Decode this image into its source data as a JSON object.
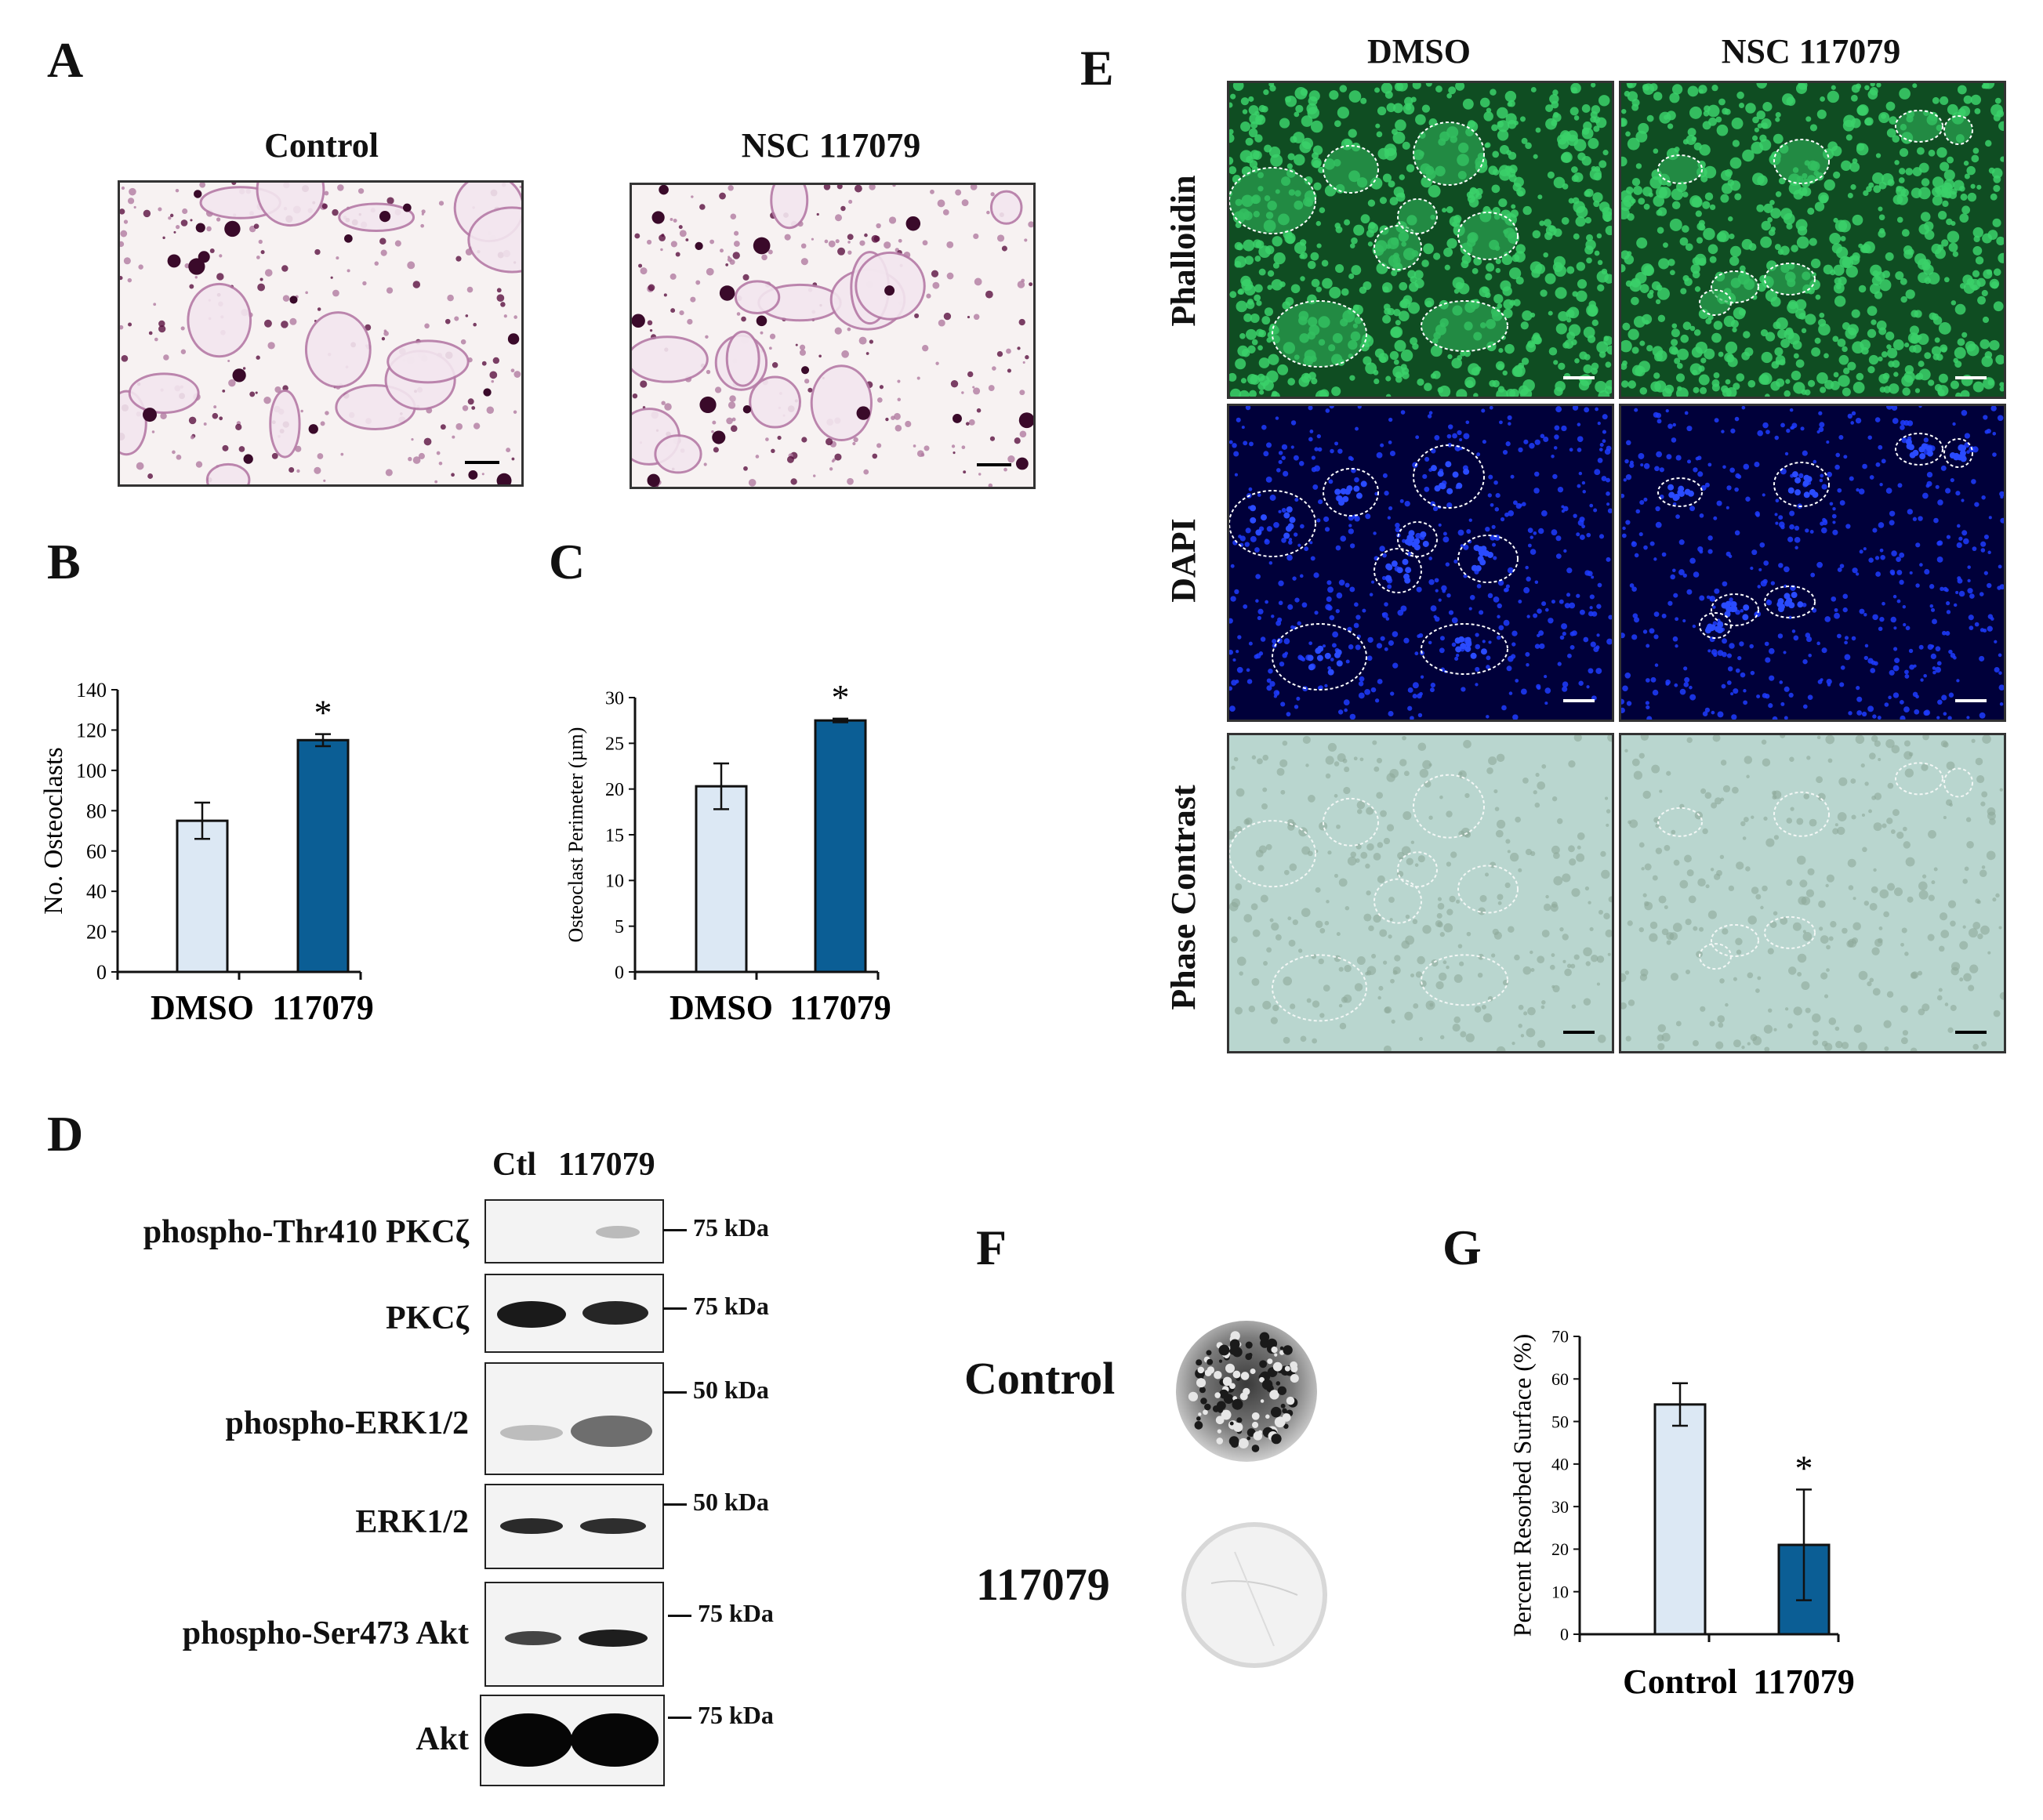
{
  "panels": {
    "A": {
      "label": "A",
      "left_title": "Control",
      "right_title": "NSC 117079"
    },
    "B": {
      "label": "B"
    },
    "C": {
      "label": "C"
    },
    "D": {
      "label": "D",
      "col_ctl": "Ctl",
      "col_drug": "117079",
      "rows": [
        {
          "name": "phospho-Thr410 PKCζ",
          "marker": "75 kDa"
        },
        {
          "name": "PKCζ",
          "marker": "75 kDa"
        },
        {
          "name": "phospho-ERK1/2",
          "marker": "50 kDa"
        },
        {
          "name": "ERK1/2",
          "marker": "50 kDa"
        },
        {
          "name": "phospho-Ser473 Akt",
          "marker": "75 kDa"
        },
        {
          "name": "Akt",
          "marker": "75 kDa"
        }
      ]
    },
    "E": {
      "label": "E",
      "col_left": "DMSO",
      "col_right": "NSC 117079",
      "row_phalloidin": "Phalloidin",
      "row_dapi": "DAPI",
      "row_phase": "Phase Contrast"
    },
    "F": {
      "label": "F",
      "row_control": "Control",
      "row_drug": "117079"
    },
    "G": {
      "label": "G"
    }
  },
  "colors": {
    "light_bar": "#dce8f4",
    "dark_bar": "#0b5e95",
    "phalloidin_bg": "#0f4d22",
    "phalloidin_cell": "#3bd16a",
    "dapi_bg": "#00003a",
    "dapi_nucleus": "#1f3cff",
    "phase_bg": "#b9d6cf",
    "stain_purple": "#7a1a5a"
  },
  "chart_data": [
    {
      "id": "B",
      "type": "bar",
      "categories": [
        "DMSO",
        "117079"
      ],
      "values": [
        75,
        115
      ],
      "errors": [
        9,
        3
      ],
      "ylabel": "No. Osteoclasts",
      "ylim": [
        0,
        140
      ],
      "yticks": [
        0,
        20,
        40,
        60,
        80,
        100,
        120,
        140
      ],
      "significance": [
        "",
        "*"
      ]
    },
    {
      "id": "C",
      "type": "bar",
      "categories": [
        "DMSO",
        "117079"
      ],
      "values": [
        20.3,
        27.5
      ],
      "errors": [
        2.5,
        0.2
      ],
      "ylabel": "Osteoclast Perimeter (µm)",
      "ylim": [
        0,
        30
      ],
      "yticks": [
        0,
        5,
        10,
        15,
        20,
        25,
        30
      ],
      "significance": [
        "",
        "*"
      ]
    },
    {
      "id": "G",
      "type": "bar",
      "categories": [
        "Control",
        "117079"
      ],
      "values": [
        54,
        21
      ],
      "errors": [
        5,
        13
      ],
      "ylabel": "Percent Resorbed Surface (%)",
      "ylim": [
        0,
        70
      ],
      "yticks": [
        0,
        10,
        20,
        30,
        40,
        50,
        60,
        70
      ],
      "significance": [
        "",
        "*"
      ]
    }
  ]
}
